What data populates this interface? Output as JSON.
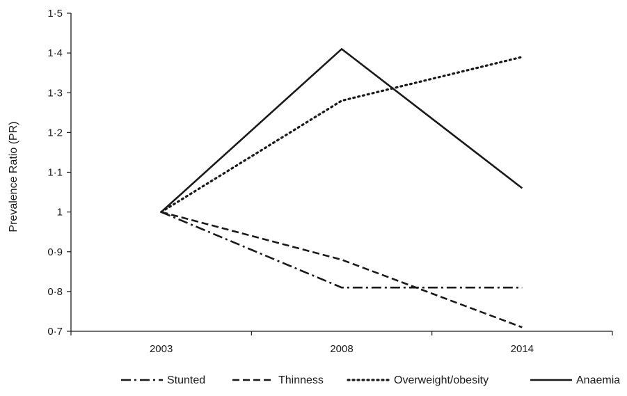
{
  "chart_data": {
    "type": "line",
    "title": "",
    "xlabel": "",
    "ylabel": "Prevalence Ratio (PR)",
    "categories": [
      "2003",
      "2008",
      "2014"
    ],
    "y_ticks": [
      "0·7",
      "0·8",
      "0·9",
      "1",
      "1·1",
      "1·2",
      "1·3",
      "1·4",
      "1·5"
    ],
    "ylim": [
      0.7,
      1.5
    ],
    "grid": false,
    "legend_position": "bottom",
    "series": [
      {
        "name": "Stunted",
        "values": [
          1.0,
          0.81,
          0.81
        ],
        "dash": "dashdot",
        "color": "#1a1a1a"
      },
      {
        "name": "Thinness",
        "values": [
          1.0,
          0.88,
          0.71
        ],
        "dash": "dashed",
        "color": "#1a1a1a"
      },
      {
        "name": "Overweight/obesity",
        "values": [
          1.0,
          1.28,
          1.39
        ],
        "dash": "dotted",
        "color": "#1a1a1a"
      },
      {
        "name": "Anaemia",
        "values": [
          1.0,
          1.41,
          1.06
        ],
        "dash": "solid",
        "color": "#1a1a1a"
      }
    ]
  }
}
